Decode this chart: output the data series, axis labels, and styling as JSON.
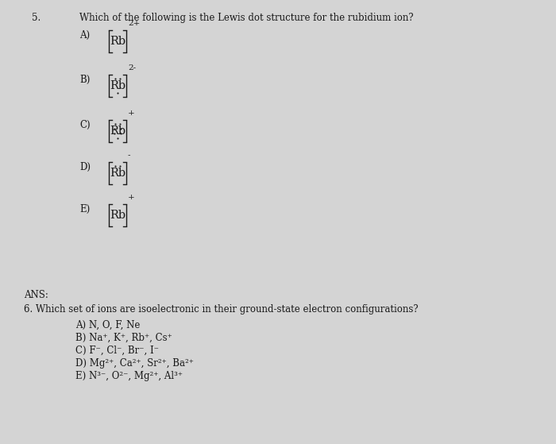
{
  "bg_color": "#d4d4d4",
  "text_color": "#1a1a1a",
  "question_num": "5.",
  "question_text": "Which of the following is the Lewis dot structure for the rubidium ion?",
  "options": [
    {
      "label": "A)",
      "charge": "2+",
      "element": "Rb",
      "dots_top": false,
      "dots_left": false,
      "dots_right": false,
      "dot_bottom_single": false
    },
    {
      "label": "B)",
      "charge": "2-",
      "element": "Rb",
      "dots_top": true,
      "dots_left": false,
      "dots_right": false,
      "dot_bottom_single": true
    },
    {
      "label": "C)",
      "charge": "+",
      "element": "Rb",
      "dots_top": true,
      "dots_left": true,
      "dots_right": true,
      "dot_bottom_single": true
    },
    {
      "label": "D)",
      "charge": "-",
      "element": "Rb",
      "dots_top": true,
      "dots_left": false,
      "dots_right": false,
      "dot_bottom_single": false
    },
    {
      "label": "E)",
      "charge": "+",
      "element": "Rb",
      "dots_top": false,
      "dots_left": false,
      "dots_right": false,
      "dot_bottom_single": false
    }
  ],
  "ans_label": "ANS:",
  "q6_text": "6. Which set of ions are isoelectronic in their ground-state electron configurations?",
  "q6_options": [
    "A) N, O, F, Ne",
    "B) Na⁺, K⁺, Rb⁺, Cs⁺",
    "C) F⁻, Cl⁻, Br⁻, I⁻",
    "D) Mg²⁺, Ca²⁺, Sr²⁺, Ba²⁺",
    "E) N³⁻, O²⁻, Mg²⁺, Al³⁺"
  ]
}
